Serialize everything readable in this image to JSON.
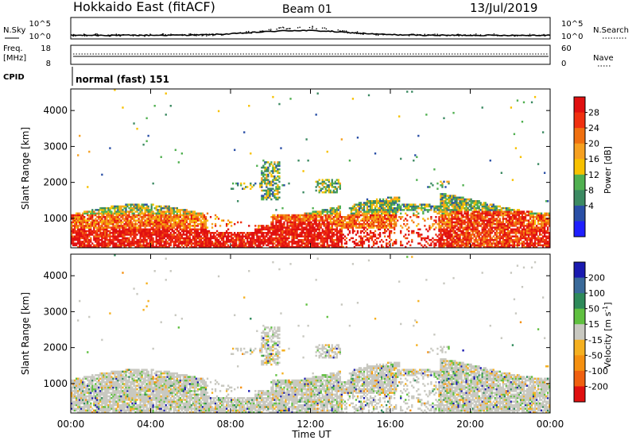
{
  "header": {
    "title": "Hokkaido East (fitACF)",
    "beam": "Beam 01",
    "date": "13/Jul/2019"
  },
  "top_panel": {
    "nsky_label": "N.Sky",
    "nsearch_label": "N.Search",
    "left_ticks": [
      "10^5",
      "10^0"
    ],
    "right_ticks": [
      "10^5",
      "10^0"
    ],
    "freq_label_1": "Freq.",
    "freq_label_2": "[MHz]",
    "freq_ticks": [
      "18",
      "8"
    ],
    "nave_label": "Nave",
    "nave_ticks": [
      "60",
      "0"
    ],
    "cpid_label": "CPID",
    "cpid_value": "normal (fast) 151"
  },
  "xaxis": {
    "label": "Time UT",
    "ticks": [
      "00:00",
      "04:00",
      "08:00",
      "12:00",
      "16:00",
      "20:00",
      "00:00"
    ]
  },
  "colors": {
    "power": [
      "#1f1fff",
      "#2a4fa6",
      "#3c8a62",
      "#50b050",
      "#f7c100",
      "#f6a020",
      "#f07010",
      "#f03010",
      "#e01010"
    ],
    "velocity_scale": [
      "#1a1ab0",
      "#3a6a9a",
      "#2e8a5a",
      "#60c040",
      "#c8c8c0",
      "#f5b020",
      "#f59010",
      "#f06010",
      "#e01010"
    ]
  },
  "chart_data": [
    {
      "type": "heatmap",
      "title": "",
      "ylabel": "Slant Range [km]",
      "yticks": [
        "1000",
        "2000",
        "3000",
        "4000"
      ],
      "ylim": [
        180,
        4600
      ],
      "xlabel": "Time UT",
      "xlim": [
        0,
        24
      ],
      "colorbar_label": "Power [dB]",
      "colorbar_ticks": [
        "4",
        "8",
        "12",
        "16",
        "20",
        "24",
        "28"
      ],
      "colorbar_range": [
        0,
        32
      ],
      "main_echo_band_km": [
        180,
        1600
      ],
      "upper_echo_patches": [
        {
          "time_h": [
            9.5,
            10.5
          ],
          "range_km": [
            1500,
            2600
          ]
        },
        {
          "time_h": [
            12.2,
            13.5
          ],
          "range_km": [
            1700,
            2100
          ]
        }
      ]
    },
    {
      "type": "heatmap",
      "title": "",
      "ylabel": "Slant Range [km]",
      "yticks": [
        "1000",
        "2000",
        "3000",
        "4000"
      ],
      "ylim": [
        180,
        4600
      ],
      "xlabel": "Time UT",
      "xlim": [
        0,
        24
      ],
      "colorbar_label": "Velocity [m s^-1]",
      "colorbar_ticks": [
        "200",
        "100",
        "50",
        "15",
        "-15",
        "-50",
        "-100",
        "-200"
      ],
      "colorbar_range": [
        -250,
        250
      ],
      "main_echo_band_km": [
        180,
        1500
      ]
    }
  ]
}
